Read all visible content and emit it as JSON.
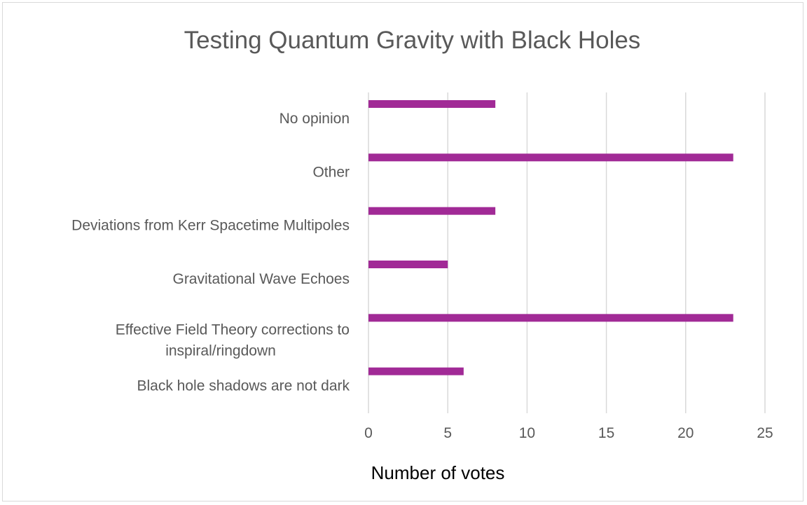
{
  "chart_data": {
    "type": "bar",
    "orientation": "horizontal",
    "title": "Testing Quantum Gravity with Black Holes",
    "xlabel": "Number of votes",
    "ylabel": "",
    "categories": [
      "No opinion",
      "Other",
      "Deviations from Kerr Spacetime Multipoles",
      "Gravitational Wave Echoes",
      [
        "Effective Field Theory corrections to",
        "inspiral/ringdown"
      ],
      "Black hole shadows are not dark"
    ],
    "values": [
      8,
      23,
      8,
      5,
      23,
      6
    ],
    "xlim": [
      0,
      25
    ],
    "xticks": [
      "0",
      "5",
      "10",
      "15",
      "20",
      "25"
    ],
    "grid": "vertical",
    "legend": "none",
    "bar_color": "#A12A96",
    "grid_color": "#d9d9d9"
  }
}
